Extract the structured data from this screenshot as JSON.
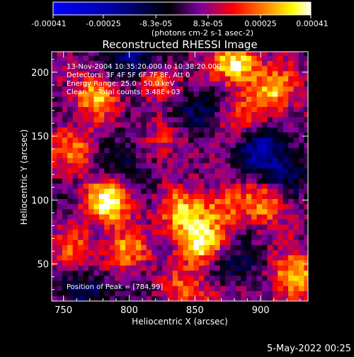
{
  "chart_data": {
    "type": "heatmap",
    "title": "Reconstructed RHESSI Image",
    "xlabel": "Heliocentric X (arcsec)",
    "ylabel": "Heliocentric Y (arcsec)",
    "xlim": [
      741,
      936
    ],
    "ylim": [
      21,
      216
    ],
    "x_ticks": [
      750,
      800,
      850,
      900
    ],
    "y_ticks": [
      50,
      100,
      150,
      200
    ],
    "colorbar": {
      "min": -0.00041,
      "max": 0.00041,
      "tick_values": [
        -0.00041,
        -0.00025,
        -8.3e-05,
        8.3e-05,
        0.00025,
        0.00041
      ],
      "tick_labels": [
        "-0.00041",
        "-0.00025",
        "-8.3e-05",
        "8.3e-05",
        "0.00025",
        "0.00041"
      ],
      "unit_label": "(photons cm-2 s-1 asec-2)",
      "colors": [
        "#0000ff",
        "#000000",
        "#7a00a0",
        "#ff0000",
        "#ff8000",
        "#ffff00",
        "#ffffff"
      ]
    },
    "annotations": [
      "13-Nov-2004 10:35:20.000 to 10:38:20.000",
      "Detectors: 3F 4F 5F 6F 7F 8F, Att 0",
      "Energy Range: 25.0 - 50.0 keV",
      "Clean     Total counts: 3.48E+03"
    ],
    "peak_label": "Position of Peak = [784,99]",
    "peak": [
      784,
      99
    ],
    "hot_spots": [
      {
        "x": 784,
        "y": 99,
        "amp": 1.0
      },
      {
        "x": 882,
        "y": 208,
        "amp": 0.95
      },
      {
        "x": 910,
        "y": 185,
        "amp": 0.8
      },
      {
        "x": 775,
        "y": 182,
        "amp": 0.7
      },
      {
        "x": 820,
        "y": 195,
        "amp": 0.65
      },
      {
        "x": 853,
        "y": 67,
        "amp": 0.9
      },
      {
        "x": 840,
        "y": 90,
        "amp": 0.7
      },
      {
        "x": 905,
        "y": 98,
        "amp": 0.65
      },
      {
        "x": 870,
        "y": 95,
        "amp": 0.55
      },
      {
        "x": 797,
        "y": 60,
        "amp": 0.6
      },
      {
        "x": 925,
        "y": 40,
        "amp": 0.85
      },
      {
        "x": 760,
        "y": 140,
        "amp": 0.55
      },
      {
        "x": 830,
        "y": 150,
        "amp": 0.5
      },
      {
        "x": 885,
        "y": 160,
        "amp": 0.45
      },
      {
        "x": 760,
        "y": 60,
        "amp": 0.5
      },
      {
        "x": 875,
        "y": 30,
        "amp": 0.5
      },
      {
        "x": 845,
        "y": 30,
        "amp": 0.45
      }
    ],
    "cold_spots": [
      {
        "x": 805,
        "y": 210,
        "amp": -0.8
      },
      {
        "x": 900,
        "y": 140,
        "amp": -0.7
      },
      {
        "x": 880,
        "y": 40,
        "amp": -0.6
      },
      {
        "x": 770,
        "y": 30,
        "amp": -0.5
      },
      {
        "x": 845,
        "y": 165,
        "amp": -0.5
      },
      {
        "x": 920,
        "y": 120,
        "amp": -0.45
      },
      {
        "x": 795,
        "y": 130,
        "amp": -0.4
      }
    ]
  },
  "footer": {
    "timestamp": "5-May-2022 00:25"
  }
}
